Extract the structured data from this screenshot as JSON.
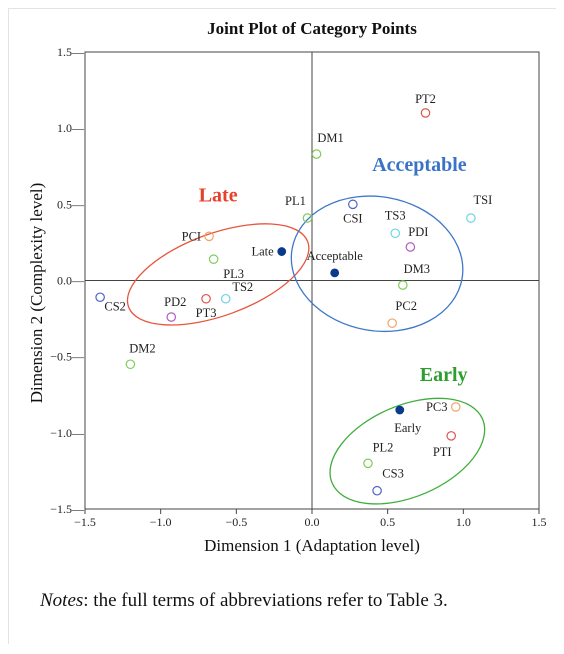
{
  "chart_data": {
    "type": "scatter",
    "title": "Joint Plot of Category Points",
    "xlabel": "Dimension 1 (Adaptation level)",
    "ylabel": "Dimension 2 (Complexity level)",
    "xlim": [
      -1.5,
      1.5
    ],
    "ylim": [
      -1.5,
      1.5
    ],
    "xticks": [
      -1.5,
      -1.0,
      -0.5,
      0.0,
      0.5,
      1.0,
      1.5
    ],
    "yticks": [
      -1.5,
      -1.0,
      -0.5,
      0.0,
      0.5,
      1.0,
      1.5
    ],
    "xtick_labels": [
      "−1.5",
      "−1.0",
      "−0.5",
      "0.0",
      "0.5",
      "1.0",
      "1.5"
    ],
    "ytick_labels": [
      "−1.5—",
      "−1.0—",
      "−0.5—",
      "0.0—",
      "0.5—",
      "1.0—",
      "1.5—"
    ],
    "grid": false,
    "reference_lines": {
      "x": 0.0,
      "y": 0.0
    },
    "colors": {
      "blue": "#4a62c6",
      "orange": "#f0a36a",
      "green": "#7fcc5c",
      "red": "#e0524a",
      "purple": "#b25bc0",
      "cyan": "#6dd3e6",
      "navy": "#0a3a8c",
      "late_ellipse": "#e8553c",
      "acceptable_ellipse": "#3f78c8",
      "early_ellipse": "#3fae3b",
      "late_label": "#e8402a",
      "acceptable_label": "#3a72c8",
      "early_label": "#2e9e2e"
    },
    "points": [
      {
        "label": "PT2",
        "x": 0.75,
        "y": 1.1,
        "color": "red",
        "filled": false
      },
      {
        "label": "DM1",
        "x": 0.03,
        "y": 0.83,
        "color": "green",
        "filled": false
      },
      {
        "label": "PL1",
        "x": -0.03,
        "y": 0.41,
        "color": "green",
        "filled": false
      },
      {
        "label": "CSI",
        "x": 0.27,
        "y": 0.5,
        "color": "blue",
        "filled": false
      },
      {
        "label": "TS3",
        "x": 0.55,
        "y": 0.31,
        "color": "cyan",
        "filled": false
      },
      {
        "label": "PDI",
        "x": 0.65,
        "y": 0.22,
        "color": "purple",
        "filled": false
      },
      {
        "label": "TSI",
        "x": 1.05,
        "y": 0.41,
        "color": "cyan",
        "filled": false
      },
      {
        "label": "Acceptable",
        "x": 0.15,
        "y": 0.05,
        "color": "navy",
        "filled": true
      },
      {
        "label": "DM3",
        "x": 0.6,
        "y": -0.03,
        "color": "green",
        "filled": false
      },
      {
        "label": "PC2",
        "x": 0.53,
        "y": -0.28,
        "color": "orange",
        "filled": false
      },
      {
        "label": "PCI",
        "x": -0.68,
        "y": 0.29,
        "color": "orange",
        "filled": false
      },
      {
        "label": "Late",
        "x": -0.2,
        "y": 0.19,
        "color": "navy",
        "filled": true
      },
      {
        "label": "PL3",
        "x": -0.65,
        "y": 0.14,
        "color": "green",
        "filled": false
      },
      {
        "label": "TS2",
        "x": -0.57,
        "y": -0.12,
        "color": "cyan",
        "filled": false
      },
      {
        "label": "PD2",
        "x": -0.93,
        "y": -0.24,
        "color": "purple",
        "filled": false
      },
      {
        "label": "PT3",
        "x": -0.7,
        "y": -0.12,
        "color": "red",
        "filled": false
      },
      {
        "label": "CS2",
        "x": -1.4,
        "y": -0.11,
        "color": "blue",
        "filled": false
      },
      {
        "label": "DM2",
        "x": -1.2,
        "y": -0.55,
        "color": "green",
        "filled": false
      },
      {
        "label": "Early",
        "x": 0.58,
        "y": -0.85,
        "color": "navy",
        "filled": true
      },
      {
        "label": "PC3",
        "x": 0.95,
        "y": -0.83,
        "color": "orange",
        "filled": false
      },
      {
        "label": "PTI",
        "x": 0.92,
        "y": -1.02,
        "color": "red",
        "filled": false
      },
      {
        "label": "PL2",
        "x": 0.37,
        "y": -1.2,
        "color": "green",
        "filled": false
      },
      {
        "label": "CS3",
        "x": 0.43,
        "y": -1.38,
        "color": "blue",
        "filled": false
      }
    ],
    "groups": [
      {
        "label": "Late",
        "color": "late_label",
        "ellipse_color": "late_ellipse",
        "cx": -0.62,
        "cy": 0.04,
        "rx": 0.63,
        "ry": 0.27,
        "angle_deg": 20,
        "label_x": -0.62,
        "label_y": 0.52
      },
      {
        "label": "Acceptable",
        "color": "acceptable_label",
        "ellipse_color": "acceptable_ellipse",
        "cx": 0.43,
        "cy": 0.11,
        "rx": 0.57,
        "ry": 0.44,
        "angle_deg": -10,
        "label_x": 0.71,
        "label_y": 0.72
      },
      {
        "label": "Early",
        "color": "early_label",
        "ellipse_color": "early_ellipse",
        "cx": 0.63,
        "cy": -1.12,
        "rx": 0.54,
        "ry": 0.3,
        "angle_deg": 23,
        "label_x": 0.87,
        "label_y": -0.66
      }
    ]
  },
  "notes": {
    "lead": "Notes",
    "text": ": the full terms of abbreviations refer to Table 3."
  }
}
